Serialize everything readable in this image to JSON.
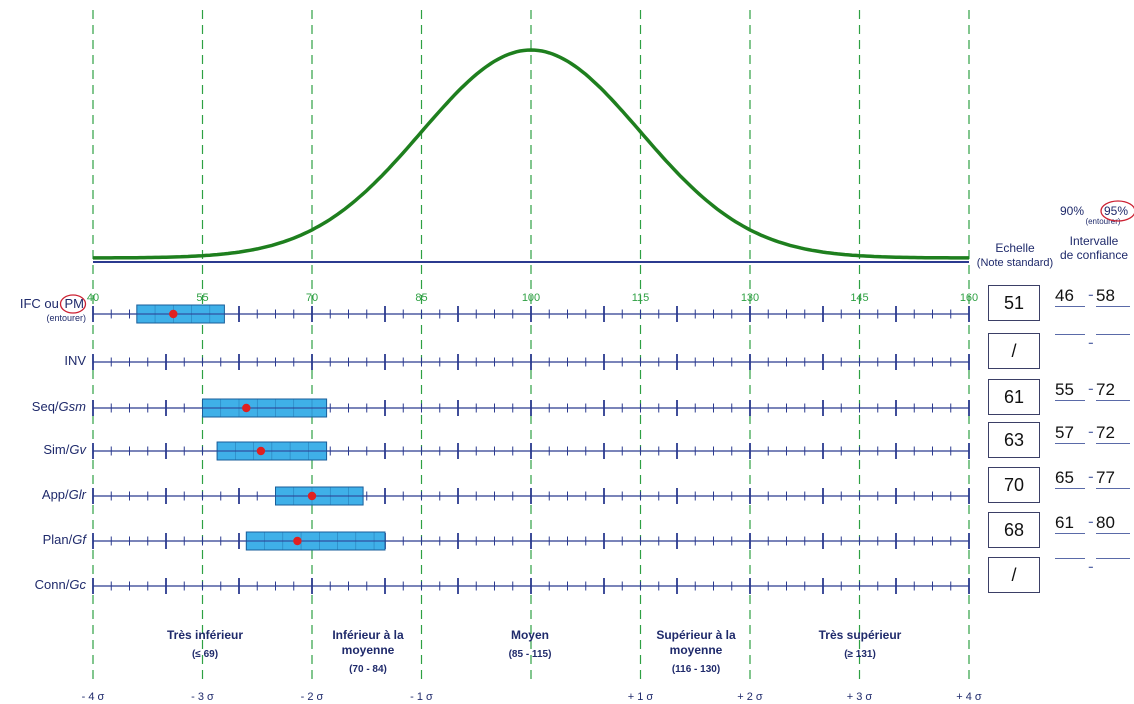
{
  "chart_data": {
    "type": "range-profile",
    "x_ticks": [
      40,
      55,
      70,
      85,
      100,
      115,
      130,
      145,
      160
    ],
    "sigma_labels": [
      "- 4 σ",
      "- 3 σ",
      "- 2 σ",
      "- 1 σ",
      "+ 1 σ",
      "+ 2 σ",
      "+ 3 σ",
      "+ 4 σ"
    ],
    "sigma_values": [
      40,
      55,
      70,
      85,
      115,
      130,
      145,
      160
    ],
    "xlim": [
      40,
      160
    ],
    "curve": {
      "mean": 100,
      "sd": 15
    },
    "rows": [
      {
        "label": "IFC ou ",
        "label_circled": "PM",
        "sublabel": "(entourer)",
        "score": "51",
        "ci_low": "46",
        "ci_high": "58",
        "point": 51,
        "band": [
          46,
          58
        ]
      },
      {
        "label": "INV",
        "score": "/",
        "ci_low": "",
        "ci_high": "",
        "point": null,
        "band": null
      },
      {
        "label": "Seq/",
        "label_italic": "Gsm",
        "score": "61",
        "ci_low": "55",
        "ci_high": "72",
        "point": 61,
        "band": [
          55,
          72
        ]
      },
      {
        "label": "Sim/",
        "label_italic": "Gv",
        "score": "63",
        "ci_low": "57",
        "ci_high": "72",
        "point": 63,
        "band": [
          57,
          72
        ]
      },
      {
        "label": "App/",
        "label_italic": "Glr",
        "score": "70",
        "ci_low": "65",
        "ci_high": "77",
        "point": 70,
        "band": [
          65,
          77
        ]
      },
      {
        "label": "Plan/",
        "label_italic": "Gf",
        "score": "68",
        "ci_low": "61",
        "ci_high": "80",
        "point": 68,
        "band": [
          61,
          80
        ]
      },
      {
        "label": "Conn/",
        "label_italic": "Gc",
        "score": "/",
        "ci_low": "",
        "ci_high": "",
        "point": null,
        "band": null
      }
    ],
    "categories": [
      {
        "label": "Très inférieur",
        "range": "(≤ 69)"
      },
      {
        "label": "Inférieur à la moyenne",
        "range": "(70 - 84)"
      },
      {
        "label": "Moyen",
        "range": "(85 - 115)"
      },
      {
        "label": "Supérieur à la moyenne",
        "range": "(116 - 130)"
      },
      {
        "label": "Très supérieur",
        "range": "(≥ 131)"
      }
    ]
  },
  "headers": {
    "scale_title": "Echelle",
    "scale_sub": "(Note standard)",
    "ci_pct_90": "90%",
    "ci_pct_95": "95%",
    "ci_pct_note": "(entourer)",
    "ci_title": "Intervalle",
    "ci_title2": "de confiance"
  },
  "colors": {
    "curve": "#1e7f1e",
    "baseline": "#2b3a8f",
    "axis": "#2b3a8f",
    "grid": "#2ea043",
    "band_fill": "#3fb0e8",
    "band_stroke": "#1a5e9a",
    "point": "#e02020",
    "circle": "#cc2233"
  }
}
